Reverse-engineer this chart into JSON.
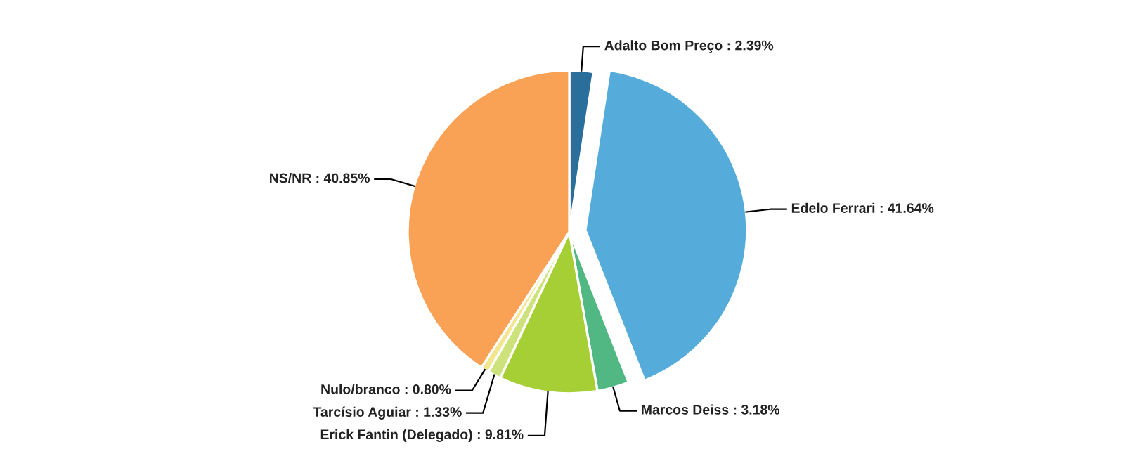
{
  "chart_data": {
    "type": "pie",
    "categories": [
      "Adalto Bom Preço",
      "Edelo Ferrari",
      "Marcos Deiss",
      "Erick Fantin (Delegado)",
      "Tarcísio Aguiar",
      "Nulo/branco",
      "NS/NR"
    ],
    "values": [
      2.39,
      41.64,
      3.18,
      9.81,
      1.33,
      0.8,
      40.85
    ],
    "value_labels": [
      "2.39%",
      "41.64%",
      "3.18%",
      "9.81%",
      "1.33%",
      "0.80%",
      "40.85%"
    ],
    "colors": [
      "#2a6f9b",
      "#55acdb",
      "#52b883",
      "#a5cf35",
      "#cde27a",
      "#f2e68e",
      "#f9a155"
    ],
    "legend": false
  }
}
